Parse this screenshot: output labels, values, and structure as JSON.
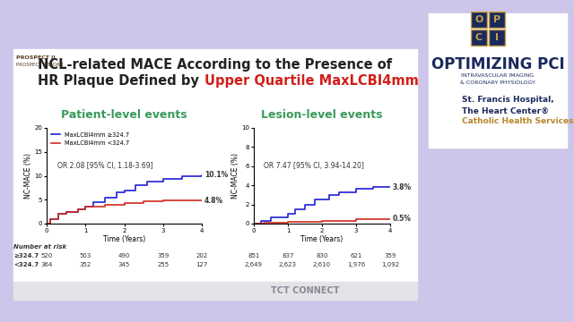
{
  "slide": {
    "logo_top": [
      "PROSPECT II",
      "PROSPECT ABSORB"
    ],
    "title_line1": "NCL-related MACE According to the Presence of",
    "title_line2": "HR Plaque Defined by",
    "title_highlight": "Upper Quartile MaxLCBI4mm",
    "footer": "TCT CONNECT"
  },
  "sidebar": {
    "opci": [
      "O",
      "P",
      "C",
      "I"
    ],
    "name": "OPTIMIZING PCI",
    "subtitle": [
      "INTRAVASCULAR IMAGING",
      "& CORONARY PHYSIOLOGY"
    ],
    "hospital": [
      "St. Francis Hospital,",
      "The Heart Center®",
      "Catholic Health Services"
    ]
  },
  "chart_data": [
    {
      "type": "line",
      "title": "Patient-level events",
      "xlabel": "Time (Years)",
      "ylabel": "NC-MACE (%)",
      "xlim": [
        0,
        4
      ],
      "xticks": [
        0,
        1,
        2,
        3,
        4
      ],
      "ylim": [
        0,
        20
      ],
      "yticks": [
        0,
        5,
        10,
        15,
        20
      ],
      "legend": "upper left",
      "line_style": "steps",
      "annotation": "OR 2.08 [95% CI, 1.18-3.69]",
      "series": [
        {
          "name": "MaxLCBI4mm ≥324.7",
          "color": "#1f1fd6",
          "end_label": "10.1%",
          "x": [
            0,
            0.1,
            0.3,
            0.5,
            0.8,
            1.0,
            1.2,
            1.5,
            1.8,
            2.0,
            2.3,
            2.6,
            3.0,
            3.5,
            4.0
          ],
          "values": [
            0,
            1.0,
            2.0,
            2.5,
            3.0,
            3.5,
            4.5,
            5.5,
            6.5,
            7.0,
            8.0,
            8.8,
            9.3,
            10.0,
            10.1
          ]
        },
        {
          "name": "MaxLCBI4mm <324.7",
          "color": "#d02a1e",
          "end_label": "4.8%",
          "x": [
            0,
            0.1,
            0.3,
            0.5,
            0.8,
            1.0,
            1.5,
            2.0,
            2.5,
            3.0,
            4.0
          ],
          "values": [
            0,
            1.0,
            2.0,
            2.5,
            3.0,
            3.5,
            4.0,
            4.3,
            4.6,
            4.8,
            4.8
          ]
        }
      ],
      "at_risk": {
        "title": "Number at risk",
        "x": [
          0,
          1,
          2,
          3,
          4
        ],
        "rows": [
          {
            "label": "≥324.7",
            "values": [
              "520",
              "503",
              "490",
              "359",
              "202"
            ]
          },
          {
            "label": "<324.7",
            "values": [
              "364",
              "352",
              "345",
              "255",
              "127"
            ]
          }
        ]
      }
    },
    {
      "type": "line",
      "title": "Lesion-level events",
      "xlabel": "Time (Years)",
      "ylabel": "NC-MACE (%)",
      "xlim": [
        0,
        4
      ],
      "xticks": [
        0,
        1,
        2,
        3,
        4
      ],
      "ylim": [
        0,
        10
      ],
      "yticks": [
        0,
        2,
        4,
        6,
        8,
        10
      ],
      "line_style": "steps",
      "annotation": "OR 7.47 [95% CI, 3.94-14.20]",
      "series": [
        {
          "name": "MaxLCBI4mm ≥324.7",
          "color": "#1f1fd6",
          "end_label": "3.8%",
          "x": [
            0,
            0.2,
            0.5,
            1.0,
            1.2,
            1.5,
            1.8,
            2.2,
            2.5,
            3.0,
            3.5,
            4.0
          ],
          "values": [
            0,
            0.3,
            0.7,
            1.0,
            1.5,
            2.0,
            2.5,
            3.0,
            3.3,
            3.6,
            3.8,
            3.8
          ]
        },
        {
          "name": "MaxLCBI4mm <324.7",
          "color": "#d02a1e",
          "end_label": "0.5%",
          "x": [
            0,
            0.3,
            1.0,
            2.0,
            3.0,
            4.0
          ],
          "values": [
            0,
            0.1,
            0.2,
            0.3,
            0.5,
            0.5
          ]
        }
      ],
      "at_risk": {
        "x": [
          0,
          1,
          2,
          3,
          4
        ],
        "rows": [
          {
            "values": [
              "851",
              "837",
              "830",
              "621",
              "359"
            ]
          },
          {
            "values": [
              "2,649",
              "2,623",
              "2,610",
              "1,976",
              "1,092"
            ]
          }
        ]
      }
    }
  ]
}
